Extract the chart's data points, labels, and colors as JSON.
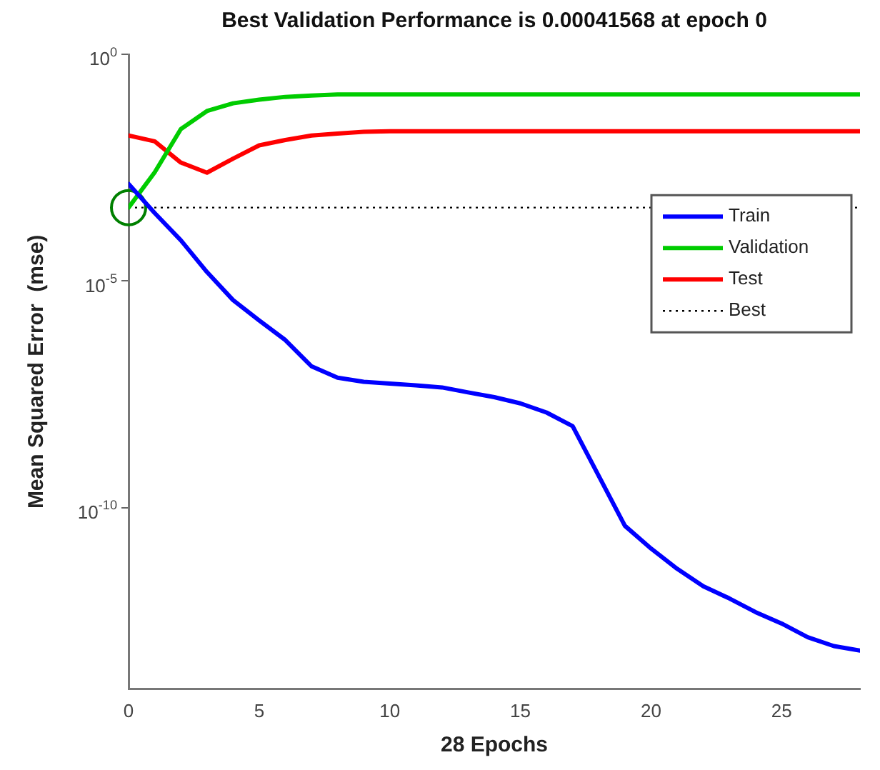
{
  "chart_data": {
    "type": "line",
    "title": "Best Validation Performance is 0.00041568 at epoch 0",
    "xlabel": "28 Epochs",
    "ylabel": "Mean Squared Error  (mse)",
    "x": [
      0,
      1,
      2,
      3,
      4,
      5,
      6,
      7,
      8,
      9,
      10,
      11,
      12,
      13,
      14,
      15,
      16,
      17,
      18,
      19,
      20,
      21,
      22,
      23,
      24,
      25,
      26,
      27,
      28
    ],
    "series": [
      {
        "name": "Train",
        "color": "#0000ff",
        "values": [
          0.00138,
          0.000316,
          7.94e-05,
          1.58e-05,
          3.8e-06,
          1.35e-06,
          5e-07,
          1.32e-07,
          7.4e-08,
          6e-08,
          5.5e-08,
          5e-08,
          4.5e-08,
          3.5e-08,
          2.75e-08,
          2e-08,
          1.26e-08,
          6.3e-09,
          5e-10,
          4e-11,
          1.26e-11,
          4.5e-12,
          1.86e-12,
          1e-12,
          5e-13,
          2.8e-13,
          1.4e-13,
          8.9e-14,
          7.1e-14
        ]
      },
      {
        "name": "Validation",
        "color": "#00cc00",
        "values": [
          0.00041568,
          0.0025,
          0.0224,
          0.056,
          0.083,
          0.1,
          0.115,
          0.123,
          0.13,
          0.13,
          0.13,
          0.13,
          0.13,
          0.13,
          0.13,
          0.13,
          0.13,
          0.13,
          0.13,
          0.13,
          0.13,
          0.13,
          0.13,
          0.13,
          0.13,
          0.13,
          0.13,
          0.13,
          0.13
        ]
      },
      {
        "name": "Test",
        "color": "#ff0000",
        "values": [
          0.0162,
          0.012,
          0.0041,
          0.00245,
          0.005,
          0.0098,
          0.0129,
          0.0162,
          0.0178,
          0.0195,
          0.02,
          0.02,
          0.02,
          0.02,
          0.02,
          0.02,
          0.02,
          0.02,
          0.02,
          0.02,
          0.02,
          0.02,
          0.02,
          0.02,
          0.02,
          0.02,
          0.02,
          0.02,
          0.02
        ]
      },
      {
        "type": "scatter",
        "color": "#008000",
        "marker": "circle",
        "x": [
          0
        ],
        "values": [
          0.00041568
        ]
      }
    ],
    "marker": "none",
    "log": "y",
    "xlim": [
      0,
      28
    ],
    "xticks": [
      0,
      5,
      10,
      15,
      20,
      25
    ],
    "ylim": [
      1e-14,
      1
    ],
    "yticks": [
      {
        "value": 1,
        "label": "10$^{0}$"
      },
      {
        "value": 1e-05,
        "label": "10$^{-5}$"
      },
      {
        "value": 1e-10,
        "label": "10$^{-10}$"
      }
    ],
    "grid": false,
    "legend": "right",
    "ref_lines": [
      {
        "axis": "y",
        "value": 0.00041568,
        "label": "Best",
        "color": "#000000",
        "line_style": "dotted"
      }
    ]
  }
}
